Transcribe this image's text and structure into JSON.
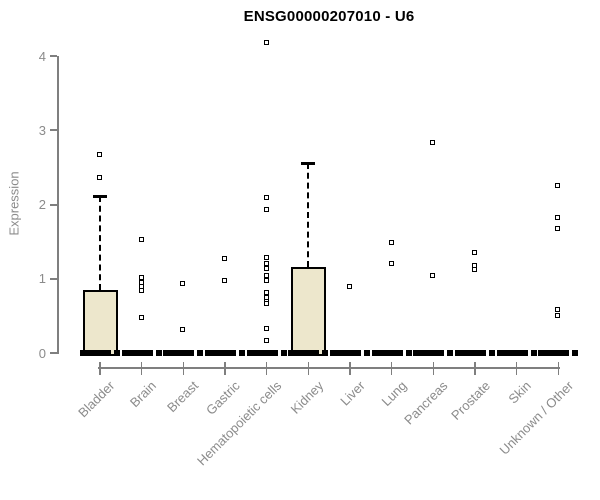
{
  "chart_data": {
    "type": "boxplot",
    "title": "ENSG00000207010 - U6",
    "xlabel": "",
    "ylabel": "Expression",
    "yticks": [
      0,
      1,
      2,
      3,
      4
    ],
    "ylim": [
      0,
      4.3
    ],
    "grid": false,
    "box_fill_color": "#EDE7CC",
    "box_line_color": "#000000",
    "axis_color": "#7f7f7f",
    "label_color": "#8b8b8b",
    "note": "All categories have a collapsed box (median bar) at expression 0; open-square markers show individual sample values",
    "categories": [
      {
        "label": "Bladder",
        "median": 0,
        "box": {
          "q_top": 0.85,
          "whisker_top": 2.11
        },
        "points": [
          2.67,
          2.37
        ]
      },
      {
        "label": "Brain",
        "median": 0,
        "box": null,
        "points": [
          1.53,
          1.02,
          0.95,
          0.89,
          0.84,
          0.48
        ]
      },
      {
        "label": "Breast",
        "median": 0,
        "box": null,
        "points": [
          0.94,
          0.31
        ]
      },
      {
        "label": "Gastric",
        "median": 0,
        "box": null,
        "points": [
          1.27,
          0.98
        ]
      },
      {
        "label": "Hematopoietic cells",
        "median": 0,
        "box": null,
        "points": [
          4.18,
          2.09,
          1.93,
          1.28,
          1.21,
          1.14,
          1.05,
          0.98,
          0.81,
          0.75,
          0.7,
          0.66,
          0.33,
          0.17
        ]
      },
      {
        "label": "Kidney",
        "median": 0,
        "box": {
          "q_top": 1.16,
          "whisker_top": 2.56
        },
        "points": []
      },
      {
        "label": "Liver",
        "median": 0,
        "box": null,
        "points": [
          0.89
        ]
      },
      {
        "label": "Lung",
        "median": 0,
        "box": null,
        "points": [
          1.49,
          1.21
        ]
      },
      {
        "label": "Pancreas",
        "median": 0,
        "box": null,
        "points": [
          2.83,
          1.04
        ]
      },
      {
        "label": "Prostate",
        "median": 0,
        "box": null,
        "points": [
          1.36,
          1.18,
          1.12
        ]
      },
      {
        "label": "Skin",
        "median": 0,
        "box": null,
        "points": []
      },
      {
        "label": "Unknown / Other",
        "median": 0,
        "box": null,
        "points": [
          2.26,
          1.82,
          1.68,
          0.58,
          0.51
        ]
      }
    ]
  }
}
